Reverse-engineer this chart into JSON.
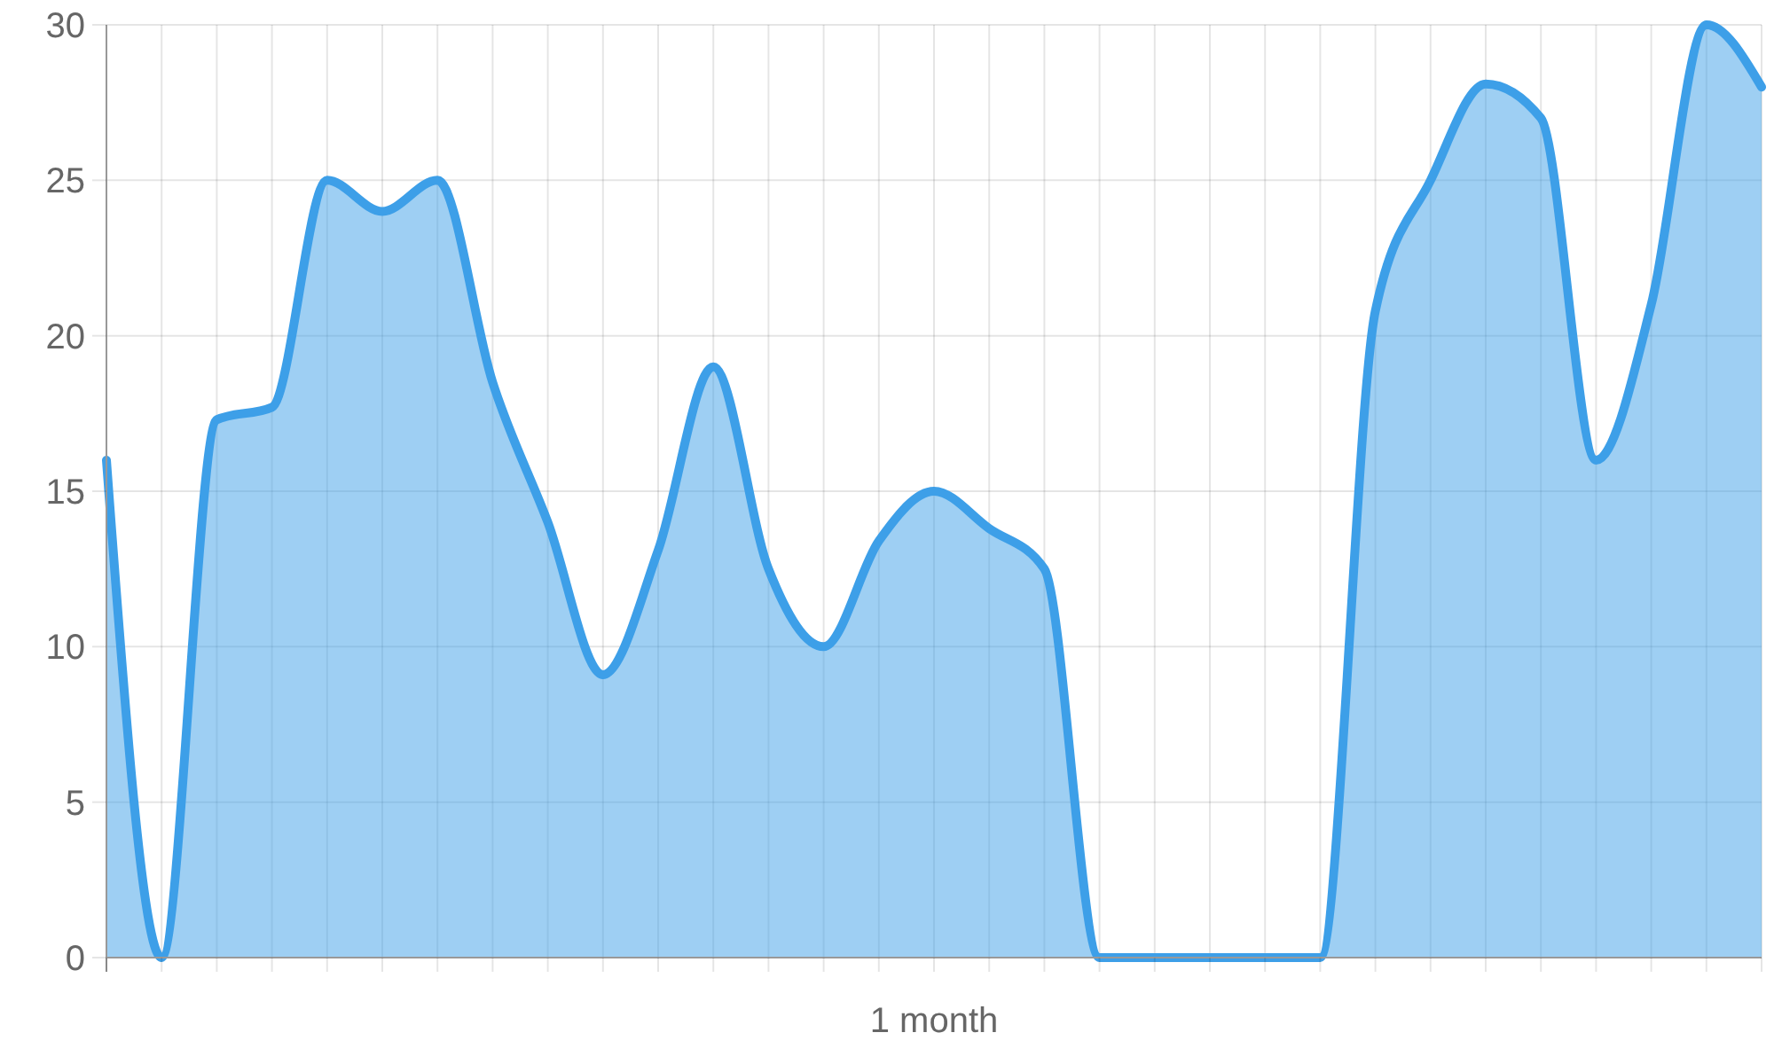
{
  "chart_data": {
    "type": "area",
    "xlabel": "1 month",
    "categories": [
      null,
      null,
      null,
      null,
      null,
      null,
      null,
      null,
      null,
      null,
      null,
      null,
      null,
      null,
      null,
      null,
      null,
      null,
      null,
      null,
      null,
      null,
      null,
      null,
      null,
      null,
      null,
      null,
      null,
      null,
      null
    ],
    "series": [
      {
        "color": "#3d9fe8",
        "values": [
          16,
          0,
          17.3,
          17.7,
          25,
          24,
          25,
          18.5,
          14,
          9.1,
          13.1,
          19,
          12.5,
          10,
          13.4,
          15,
          13.8,
          12.5,
          0,
          0,
          0,
          0,
          0,
          20.8,
          25,
          28.1,
          27,
          16,
          21,
          30,
          28
        ]
      }
    ],
    "ylim": [
      0,
      30
    ],
    "yticks": [
      0,
      5,
      10,
      15,
      20,
      25,
      30
    ],
    "grid": true,
    "marker": "none",
    "line_style": "solid"
  }
}
